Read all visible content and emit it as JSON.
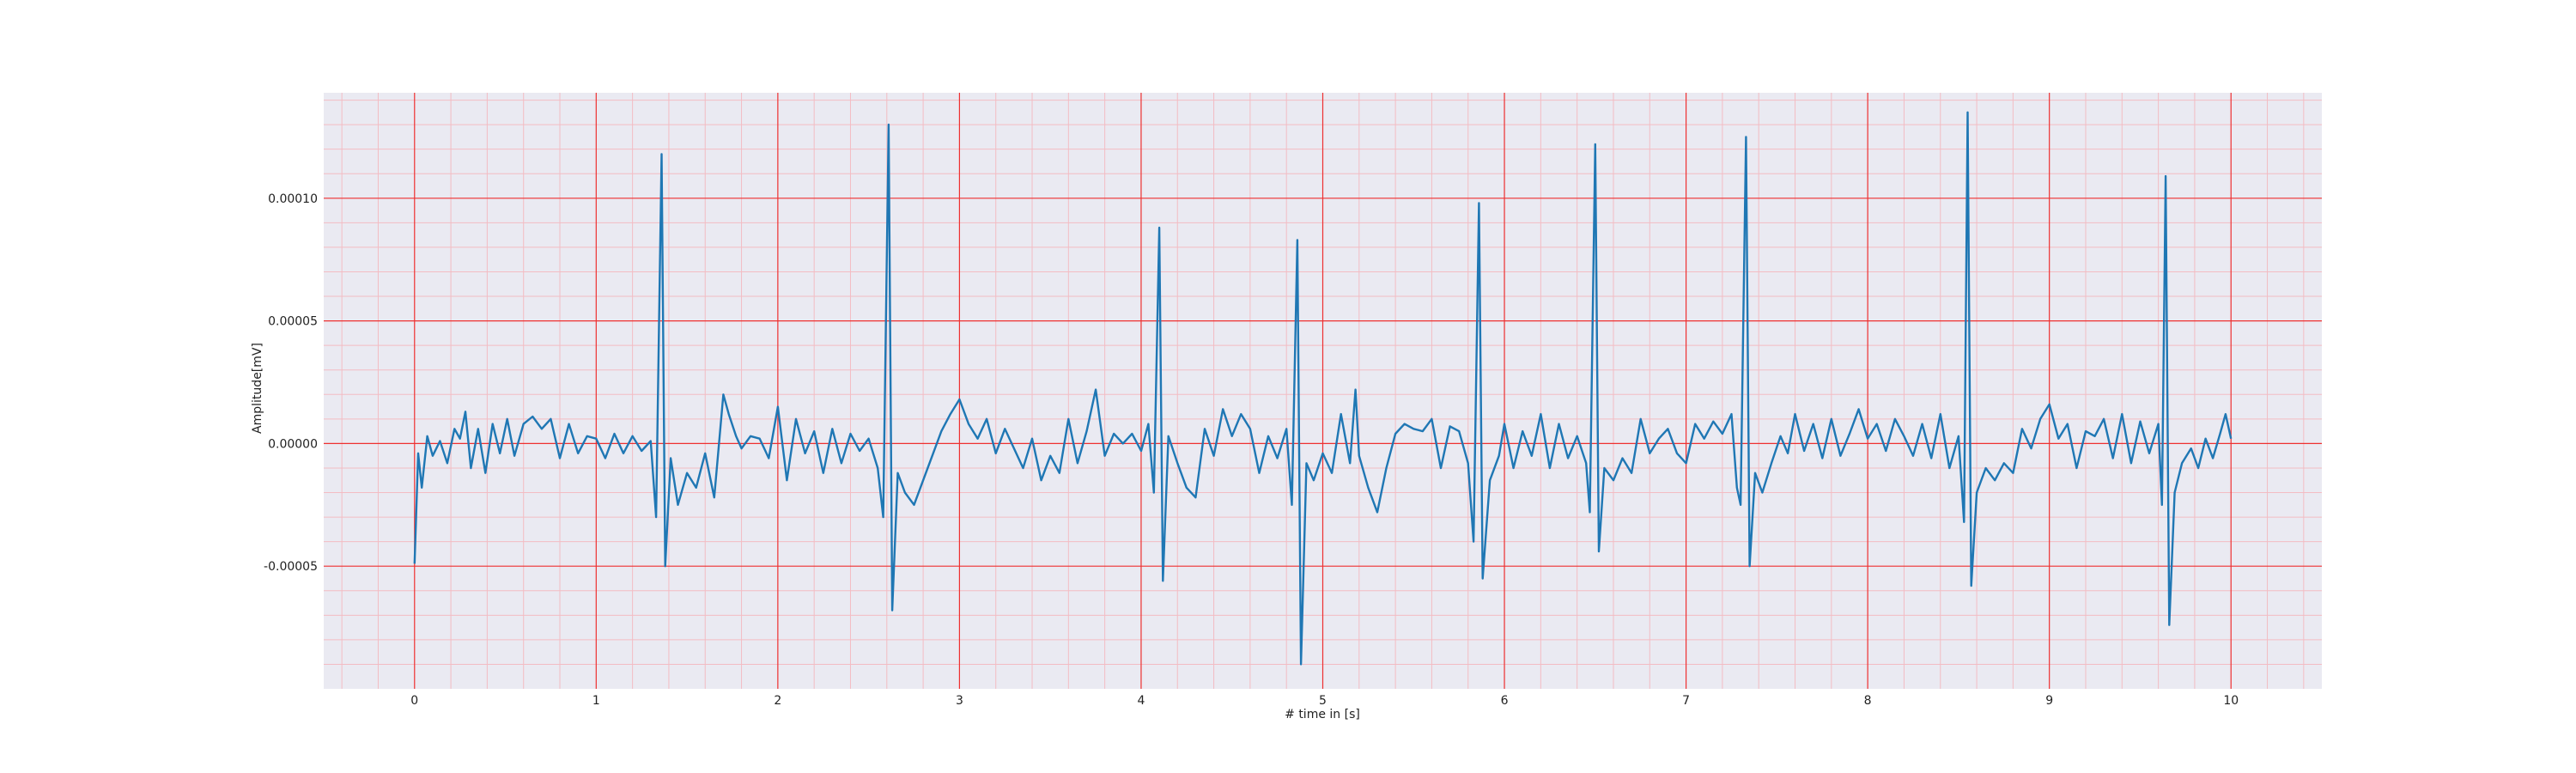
{
  "chart_data": {
    "type": "line",
    "title": "",
    "xlabel": "# time in [s]",
    "ylabel": "Amplitude[mV]",
    "xlim": [
      -0.5,
      10.5
    ],
    "ylim": [
      -0.0001,
      0.000143
    ],
    "grid": true,
    "minor_grid": true,
    "x_ticks": [
      0,
      1,
      2,
      3,
      4,
      5,
      6,
      7,
      8,
      9,
      10
    ],
    "x_tick_labels": [
      "0",
      "1",
      "2",
      "3",
      "4",
      "5",
      "6",
      "7",
      "8",
      "9",
      "10"
    ],
    "y_ticks": [
      -5e-05,
      0.0,
      5e-05,
      0.0001
    ],
    "y_tick_labels": [
      "-0.00005",
      "0.00000",
      "0.00005",
      "0.00010"
    ],
    "series": [
      {
        "line_color": "#1f77b4",
        "beats": [
          {
            "t": 1.36,
            "r_peak": 0.000118,
            "s_trough": -5e-05
          },
          {
            "t": 2.61,
            "r_peak": 0.00013,
            "s_trough": -6.8e-05
          },
          {
            "t": 4.1,
            "r_peak": 8.8e-05,
            "s_trough": -5.6e-05
          },
          {
            "t": 4.86,
            "r_peak": 8.3e-05,
            "s_trough": -9e-05
          },
          {
            "t": 5.86,
            "r_peak": 9.8e-05,
            "s_trough": -5.5e-05
          },
          {
            "t": 6.5,
            "r_peak": 0.000122,
            "s_trough": -4.4e-05
          },
          {
            "t": 7.33,
            "r_peak": 0.000125,
            "s_trough": -5e-05
          },
          {
            "t": 8.55,
            "r_peak": 0.000135,
            "s_trough": -5.8e-05
          },
          {
            "t": 9.64,
            "r_peak": 0.000109,
            "s_trough": -7.4e-05
          }
        ],
        "points": [
          [
            0.0,
            -4.9e-05
          ],
          [
            0.02,
            -4e-06
          ],
          [
            0.04,
            -1.8e-05
          ],
          [
            0.07,
            3e-06
          ],
          [
            0.1,
            -5e-06
          ],
          [
            0.14,
            1e-06
          ],
          [
            0.18,
            -8e-06
          ],
          [
            0.22,
            6e-06
          ],
          [
            0.25,
            2e-06
          ],
          [
            0.28,
            1.3e-05
          ],
          [
            0.31,
            -1e-05
          ],
          [
            0.35,
            6e-06
          ],
          [
            0.39,
            -1.2e-05
          ],
          [
            0.43,
            8e-06
          ],
          [
            0.47,
            -4e-06
          ],
          [
            0.51,
            1e-05
          ],
          [
            0.55,
            -5e-06
          ],
          [
            0.6,
            8e-06
          ],
          [
            0.65,
            1.1e-05
          ],
          [
            0.7,
            6e-06
          ],
          [
            0.75,
            1e-05
          ],
          [
            0.8,
            -6e-06
          ],
          [
            0.85,
            8e-06
          ],
          [
            0.9,
            -4e-06
          ],
          [
            0.95,
            3e-06
          ],
          [
            1.0,
            2e-06
          ],
          [
            1.05,
            -6e-06
          ],
          [
            1.1,
            4e-06
          ],
          [
            1.15,
            -4e-06
          ],
          [
            1.2,
            3e-06
          ],
          [
            1.25,
            -3e-06
          ],
          [
            1.3,
            1e-06
          ],
          [
            1.33,
            -3e-05
          ],
          [
            1.36,
            0.000118
          ],
          [
            1.38,
            -5e-05
          ],
          [
            1.41,
            -6e-06
          ],
          [
            1.45,
            -2.5e-05
          ],
          [
            1.5,
            -1.2e-05
          ],
          [
            1.55,
            -1.8e-05
          ],
          [
            1.6,
            -4e-06
          ],
          [
            1.65,
            -2.2e-05
          ],
          [
            1.7,
            2e-05
          ],
          [
            1.73,
            1.2e-05
          ],
          [
            1.77,
            3e-06
          ],
          [
            1.8,
            -2e-06
          ],
          [
            1.85,
            3e-06
          ],
          [
            1.9,
            2e-06
          ],
          [
            1.95,
            -6e-06
          ],
          [
            2.0,
            1.5e-05
          ],
          [
            2.05,
            -1.5e-05
          ],
          [
            2.1,
            1e-05
          ],
          [
            2.15,
            -4e-06
          ],
          [
            2.2,
            5e-06
          ],
          [
            2.25,
            -1.2e-05
          ],
          [
            2.3,
            6e-06
          ],
          [
            2.35,
            -8e-06
          ],
          [
            2.4,
            4e-06
          ],
          [
            2.45,
            -3e-06
          ],
          [
            2.5,
            2e-06
          ],
          [
            2.55,
            -1e-05
          ],
          [
            2.58,
            -3e-05
          ],
          [
            2.61,
            0.00013
          ],
          [
            2.63,
            -6.8e-05
          ],
          [
            2.66,
            -1.2e-05
          ],
          [
            2.7,
            -2e-05
          ],
          [
            2.75,
            -2.5e-05
          ],
          [
            2.8,
            -1.5e-05
          ],
          [
            2.85,
            -5e-06
          ],
          [
            2.9,
            5e-06
          ],
          [
            2.95,
            1.2e-05
          ],
          [
            3.0,
            1.8e-05
          ],
          [
            3.05,
            8e-06
          ],
          [
            3.1,
            2e-06
          ],
          [
            3.15,
            1e-05
          ],
          [
            3.2,
            -4e-06
          ],
          [
            3.25,
            6e-06
          ],
          [
            3.3,
            -2e-06
          ],
          [
            3.35,
            -1e-05
          ],
          [
            3.4,
            2e-06
          ],
          [
            3.45,
            -1.5e-05
          ],
          [
            3.5,
            -5e-06
          ],
          [
            3.55,
            -1.2e-05
          ],
          [
            3.6,
            1e-05
          ],
          [
            3.65,
            -8e-06
          ],
          [
            3.7,
            5e-06
          ],
          [
            3.75,
            2.2e-05
          ],
          [
            3.8,
            -5e-06
          ],
          [
            3.85,
            4e-06
          ],
          [
            3.9,
            0.0
          ],
          [
            3.95,
            4e-06
          ],
          [
            4.0,
            -3e-06
          ],
          [
            4.04,
            8e-06
          ],
          [
            4.07,
            -2e-05
          ],
          [
            4.1,
            8.8e-05
          ],
          [
            4.12,
            -5.6e-05
          ],
          [
            4.15,
            3e-06
          ],
          [
            4.2,
            -8e-06
          ],
          [
            4.25,
            -1.8e-05
          ],
          [
            4.3,
            -2.2e-05
          ],
          [
            4.35,
            6e-06
          ],
          [
            4.4,
            -5e-06
          ],
          [
            4.45,
            1.4e-05
          ],
          [
            4.5,
            3e-06
          ],
          [
            4.55,
            1.2e-05
          ],
          [
            4.6,
            6e-06
          ],
          [
            4.65,
            -1.2e-05
          ],
          [
            4.7,
            3e-06
          ],
          [
            4.75,
            -6e-06
          ],
          [
            4.8,
            6e-06
          ],
          [
            4.83,
            -2.5e-05
          ],
          [
            4.86,
            8.3e-05
          ],
          [
            4.88,
            -9e-05
          ],
          [
            4.91,
            -8e-06
          ],
          [
            4.95,
            -1.5e-05
          ],
          [
            5.0,
            -4e-06
          ],
          [
            5.05,
            -1.2e-05
          ],
          [
            5.1,
            1.2e-05
          ],
          [
            5.15,
            -8e-06
          ],
          [
            5.18,
            2.2e-05
          ],
          [
            5.2,
            -5e-06
          ],
          [
            5.25,
            -1.8e-05
          ],
          [
            5.3,
            -2.8e-05
          ],
          [
            5.35,
            -1e-05
          ],
          [
            5.4,
            4e-06
          ],
          [
            5.45,
            8e-06
          ],
          [
            5.5,
            6e-06
          ],
          [
            5.55,
            5e-06
          ],
          [
            5.6,
            1e-05
          ],
          [
            5.65,
            -1e-05
          ],
          [
            5.7,
            7e-06
          ],
          [
            5.75,
            5e-06
          ],
          [
            5.8,
            -8e-06
          ],
          [
            5.83,
            -4e-05
          ],
          [
            5.86,
            9.8e-05
          ],
          [
            5.88,
            -5.5e-05
          ],
          [
            5.92,
            -1.5e-05
          ],
          [
            5.97,
            -5e-06
          ],
          [
            6.0,
            8e-06
          ],
          [
            6.05,
            -1e-05
          ],
          [
            6.1,
            5e-06
          ],
          [
            6.15,
            -5e-06
          ],
          [
            6.2,
            1.2e-05
          ],
          [
            6.25,
            -1e-05
          ],
          [
            6.3,
            8e-06
          ],
          [
            6.35,
            -6e-06
          ],
          [
            6.4,
            3e-06
          ],
          [
            6.45,
            -8e-06
          ],
          [
            6.47,
            -2.8e-05
          ],
          [
            6.5,
            0.000122
          ],
          [
            6.52,
            -4.4e-05
          ],
          [
            6.55,
            -1e-05
          ],
          [
            6.6,
            -1.5e-05
          ],
          [
            6.65,
            -6e-06
          ],
          [
            6.7,
            -1.2e-05
          ],
          [
            6.75,
            1e-05
          ],
          [
            6.8,
            -4e-06
          ],
          [
            6.85,
            2e-06
          ],
          [
            6.9,
            6e-06
          ],
          [
            6.95,
            -4e-06
          ],
          [
            7.0,
            -8e-06
          ],
          [
            7.05,
            8e-06
          ],
          [
            7.1,
            2e-06
          ],
          [
            7.15,
            9e-06
          ],
          [
            7.2,
            4e-06
          ],
          [
            7.25,
            1.2e-05
          ],
          [
            7.28,
            -1.8e-05
          ],
          [
            7.3,
            -2.5e-05
          ],
          [
            7.33,
            0.000125
          ],
          [
            7.35,
            -5e-05
          ],
          [
            7.38,
            -1.2e-05
          ],
          [
            7.42,
            -2e-05
          ],
          [
            7.47,
            -8e-06
          ],
          [
            7.52,
            3e-06
          ],
          [
            7.56,
            -4e-06
          ],
          [
            7.6,
            1.2e-05
          ],
          [
            7.65,
            -3e-06
          ],
          [
            7.7,
            8e-06
          ],
          [
            7.75,
            -6e-06
          ],
          [
            7.8,
            1e-05
          ],
          [
            7.85,
            -5e-06
          ],
          [
            7.9,
            4e-06
          ],
          [
            7.95,
            1.4e-05
          ],
          [
            8.0,
            2e-06
          ],
          [
            8.05,
            8e-06
          ],
          [
            8.1,
            -3e-06
          ],
          [
            8.15,
            1e-05
          ],
          [
            8.2,
            3e-06
          ],
          [
            8.25,
            -5e-06
          ],
          [
            8.3,
            8e-06
          ],
          [
            8.35,
            -6e-06
          ],
          [
            8.4,
            1.2e-05
          ],
          [
            8.45,
            -1e-05
          ],
          [
            8.5,
            3e-06
          ],
          [
            8.53,
            -3.2e-05
          ],
          [
            8.55,
            0.000135
          ],
          [
            8.57,
            -5.8e-05
          ],
          [
            8.6,
            -2e-05
          ],
          [
            8.65,
            -1e-05
          ],
          [
            8.7,
            -1.5e-05
          ],
          [
            8.75,
            -8e-06
          ],
          [
            8.8,
            -1.2e-05
          ],
          [
            8.85,
            6e-06
          ],
          [
            8.9,
            -2e-06
          ],
          [
            8.95,
            1e-05
          ],
          [
            9.0,
            1.6e-05
          ],
          [
            9.05,
            2e-06
          ],
          [
            9.1,
            8e-06
          ],
          [
            9.15,
            -1e-05
          ],
          [
            9.2,
            5e-06
          ],
          [
            9.25,
            3e-06
          ],
          [
            9.3,
            1e-05
          ],
          [
            9.35,
            -6e-06
          ],
          [
            9.4,
            1.2e-05
          ],
          [
            9.45,
            -8e-06
          ],
          [
            9.5,
            9e-06
          ],
          [
            9.55,
            -4e-06
          ],
          [
            9.6,
            8e-06
          ],
          [
            9.62,
            -2.5e-05
          ],
          [
            9.64,
            0.000109
          ],
          [
            9.66,
            -7.4e-05
          ],
          [
            9.69,
            -2e-05
          ],
          [
            9.73,
            -8e-06
          ],
          [
            9.78,
            -2e-06
          ],
          [
            9.82,
            -1e-05
          ],
          [
            9.86,
            2e-06
          ],
          [
            9.9,
            -6e-06
          ],
          [
            9.94,
            4e-06
          ],
          [
            9.97,
            1.2e-05
          ],
          [
            10.0,
            2e-06
          ]
        ]
      }
    ]
  }
}
